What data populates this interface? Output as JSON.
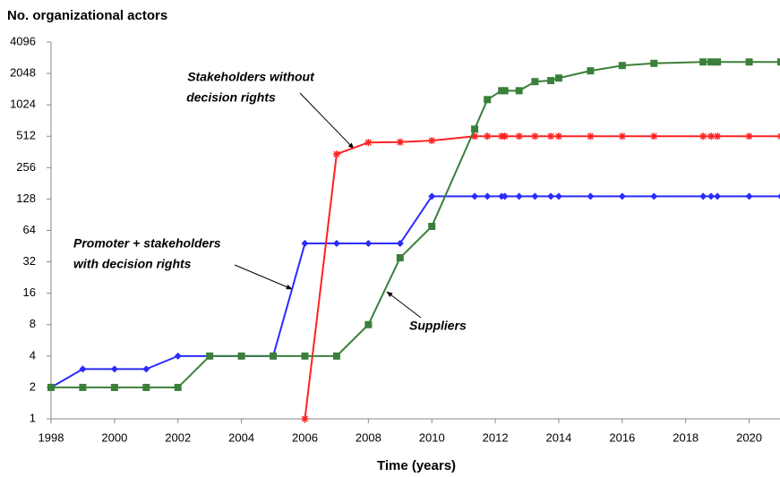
{
  "chart_data": {
    "type": "line",
    "title": "No. organizational actors",
    "x_label": "Time (years)",
    "yscale": "log",
    "xlim": [
      1998,
      2021
    ],
    "xticks": [
      1998,
      2000,
      2002,
      2004,
      2006,
      2008,
      2010,
      2012,
      2014,
      2016,
      2018,
      2020
    ],
    "ylim": [
      1,
      4096
    ],
    "yticks": [
      1,
      2,
      4,
      8,
      16,
      32,
      64,
      128,
      256,
      512,
      1024,
      2048,
      4096
    ],
    "grid": false,
    "series": [
      {
        "name": "Promoter + stakeholders with decision rights",
        "color": "#2b2bff",
        "marker": "diamond",
        "x": [
          1998,
          1999,
          2000,
          2001,
          2002,
          2003,
          2004,
          2005,
          2006,
          2007,
          2008,
          2009,
          2010,
          2011.35,
          2011.75,
          2012.2,
          2012.3,
          2012.75,
          2013.25,
          2013.75,
          2014,
          2015,
          2016,
          2017,
          2018.55,
          2018.8,
          2019,
          2020,
          2021
        ],
        "values": [
          2,
          3,
          3,
          3,
          4,
          4,
          4,
          4,
          48,
          48,
          48,
          48,
          136,
          136,
          136,
          136,
          136,
          136,
          136,
          136,
          136,
          136,
          136,
          136,
          136,
          136,
          136,
          136,
          136
        ]
      },
      {
        "name": "Stakeholders without decision rights",
        "color": "#ff2020",
        "marker": "asterisk",
        "x": [
          2006,
          2007,
          2008,
          2009,
          2010,
          2011.35,
          2011.75,
          2012.2,
          2012.3,
          2012.75,
          2013.25,
          2013.75,
          2014,
          2015,
          2016,
          2017,
          2018.55,
          2018.8,
          2019,
          2020,
          2021
        ],
        "values": [
          1,
          345,
          446,
          450,
          465,
          512,
          512,
          512,
          512,
          512,
          512,
          512,
          512,
          512,
          512,
          512,
          512,
          512,
          512,
          512,
          512
        ]
      },
      {
        "name": "Suppliers",
        "color": "#3a7f3a",
        "marker": "square",
        "x": [
          1998,
          1999,
          2000,
          2001,
          2002,
          2003,
          2004,
          2005,
          2006,
          2007,
          2008,
          2009,
          2010,
          2011.35,
          2011.75,
          2012.2,
          2012.3,
          2012.75,
          2013.25,
          2013.75,
          2014,
          2015,
          2016,
          2017,
          2018.55,
          2018.8,
          2019,
          2020,
          2021
        ],
        "values": [
          2,
          2,
          2,
          2,
          2,
          4,
          4,
          4,
          4,
          4,
          8,
          35,
          70,
          600,
          1150,
          1400,
          1400,
          1400,
          1710,
          1750,
          1850,
          2170,
          2440,
          2560,
          2640,
          2640,
          2640,
          2640,
          2640
        ]
      }
    ],
    "annotations": [
      {
        "lines": [
          "Stakeholders without",
          "decision rights"
        ]
      },
      {
        "lines": [
          "Promoter  + stakeholders",
          "with decision rights"
        ]
      },
      {
        "lines": [
          "Suppliers"
        ]
      }
    ]
  }
}
